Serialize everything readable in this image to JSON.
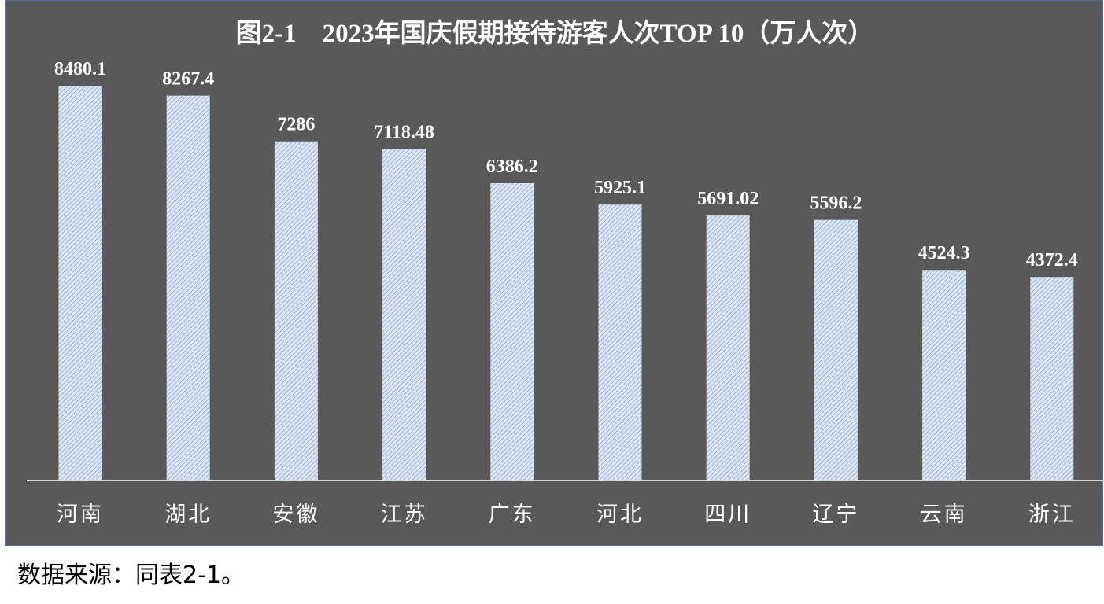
{
  "chart_data": {
    "type": "bar",
    "title": "图2-1    2023年国庆假期接待游客人次TOP 10（万人次）",
    "categories": [
      "河南",
      "湖北",
      "安徽",
      "江苏",
      "广东",
      "河北",
      "四川",
      "辽宁",
      "云南",
      "浙江"
    ],
    "values": [
      8480.1,
      8267.4,
      7286,
      7118.48,
      6386.2,
      5925.1,
      5691.02,
      5596.2,
      4524.3,
      4372.4
    ],
    "value_labels": [
      "8480.1",
      "8267.4",
      "7286",
      "7118.48",
      "6386.2",
      "5925.1",
      "5691.02",
      "5596.2",
      "4524.3",
      "4372.4"
    ],
    "ylim": [
      0,
      8480.1
    ],
    "grid": false,
    "legend": "none",
    "colors": {
      "background": "#595959",
      "bar_fill": "#dce6f2",
      "bar_hatch": "#8ea9cf",
      "text": "#ffffff",
      "axis": "#d9d9d9"
    }
  },
  "source_note": "数据来源：同表2-1。"
}
